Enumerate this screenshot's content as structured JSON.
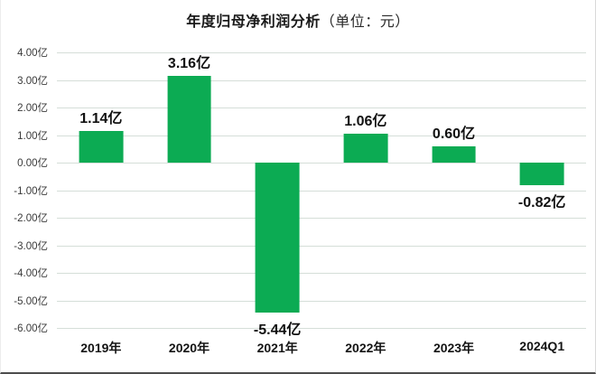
{
  "title": {
    "main": "年度归母净利润分析",
    "unit": "（单位：元）"
  },
  "chart_data": {
    "type": "bar",
    "title": "年度归母净利润分析（单位：元）",
    "categories": [
      "2019年",
      "2020年",
      "2021年",
      "2022年",
      "2023年",
      "2024Q1"
    ],
    "values": [
      1.14,
      3.16,
      -5.44,
      1.06,
      0.6,
      -0.82
    ],
    "value_labels": [
      "1.14亿",
      "3.16亿",
      "-5.44亿",
      "1.06亿",
      "0.60亿",
      "-0.82亿"
    ],
    "xlabel": "",
    "ylabel": "",
    "ylim": [
      -6,
      4
    ],
    "grid": true,
    "legend": false,
    "bar_color": "#0CAB53",
    "yticks": [
      {
        "value": 4,
        "label": "4.00亿"
      },
      {
        "value": 3,
        "label": "3.00亿"
      },
      {
        "value": 2,
        "label": "2.00亿"
      },
      {
        "value": 1,
        "label": "1.00亿"
      },
      {
        "value": 0,
        "label": "0.00亿"
      },
      {
        "value": -1,
        "label": "-1.00亿"
      },
      {
        "value": -2,
        "label": "-2.00亿"
      },
      {
        "value": -3,
        "label": "-3.00亿"
      },
      {
        "value": -4,
        "label": "-4.00亿"
      },
      {
        "value": -5,
        "label": "-5.00亿"
      },
      {
        "value": -6,
        "label": "-6.00亿"
      }
    ]
  },
  "colors": {
    "bar": "#0CAB53",
    "gridline": "#D5DED8",
    "axis_text": "#3A3A3A",
    "label_text": "#111111",
    "border_right": "#D9D9D9",
    "border_bottom": "#4D4D4D"
  }
}
